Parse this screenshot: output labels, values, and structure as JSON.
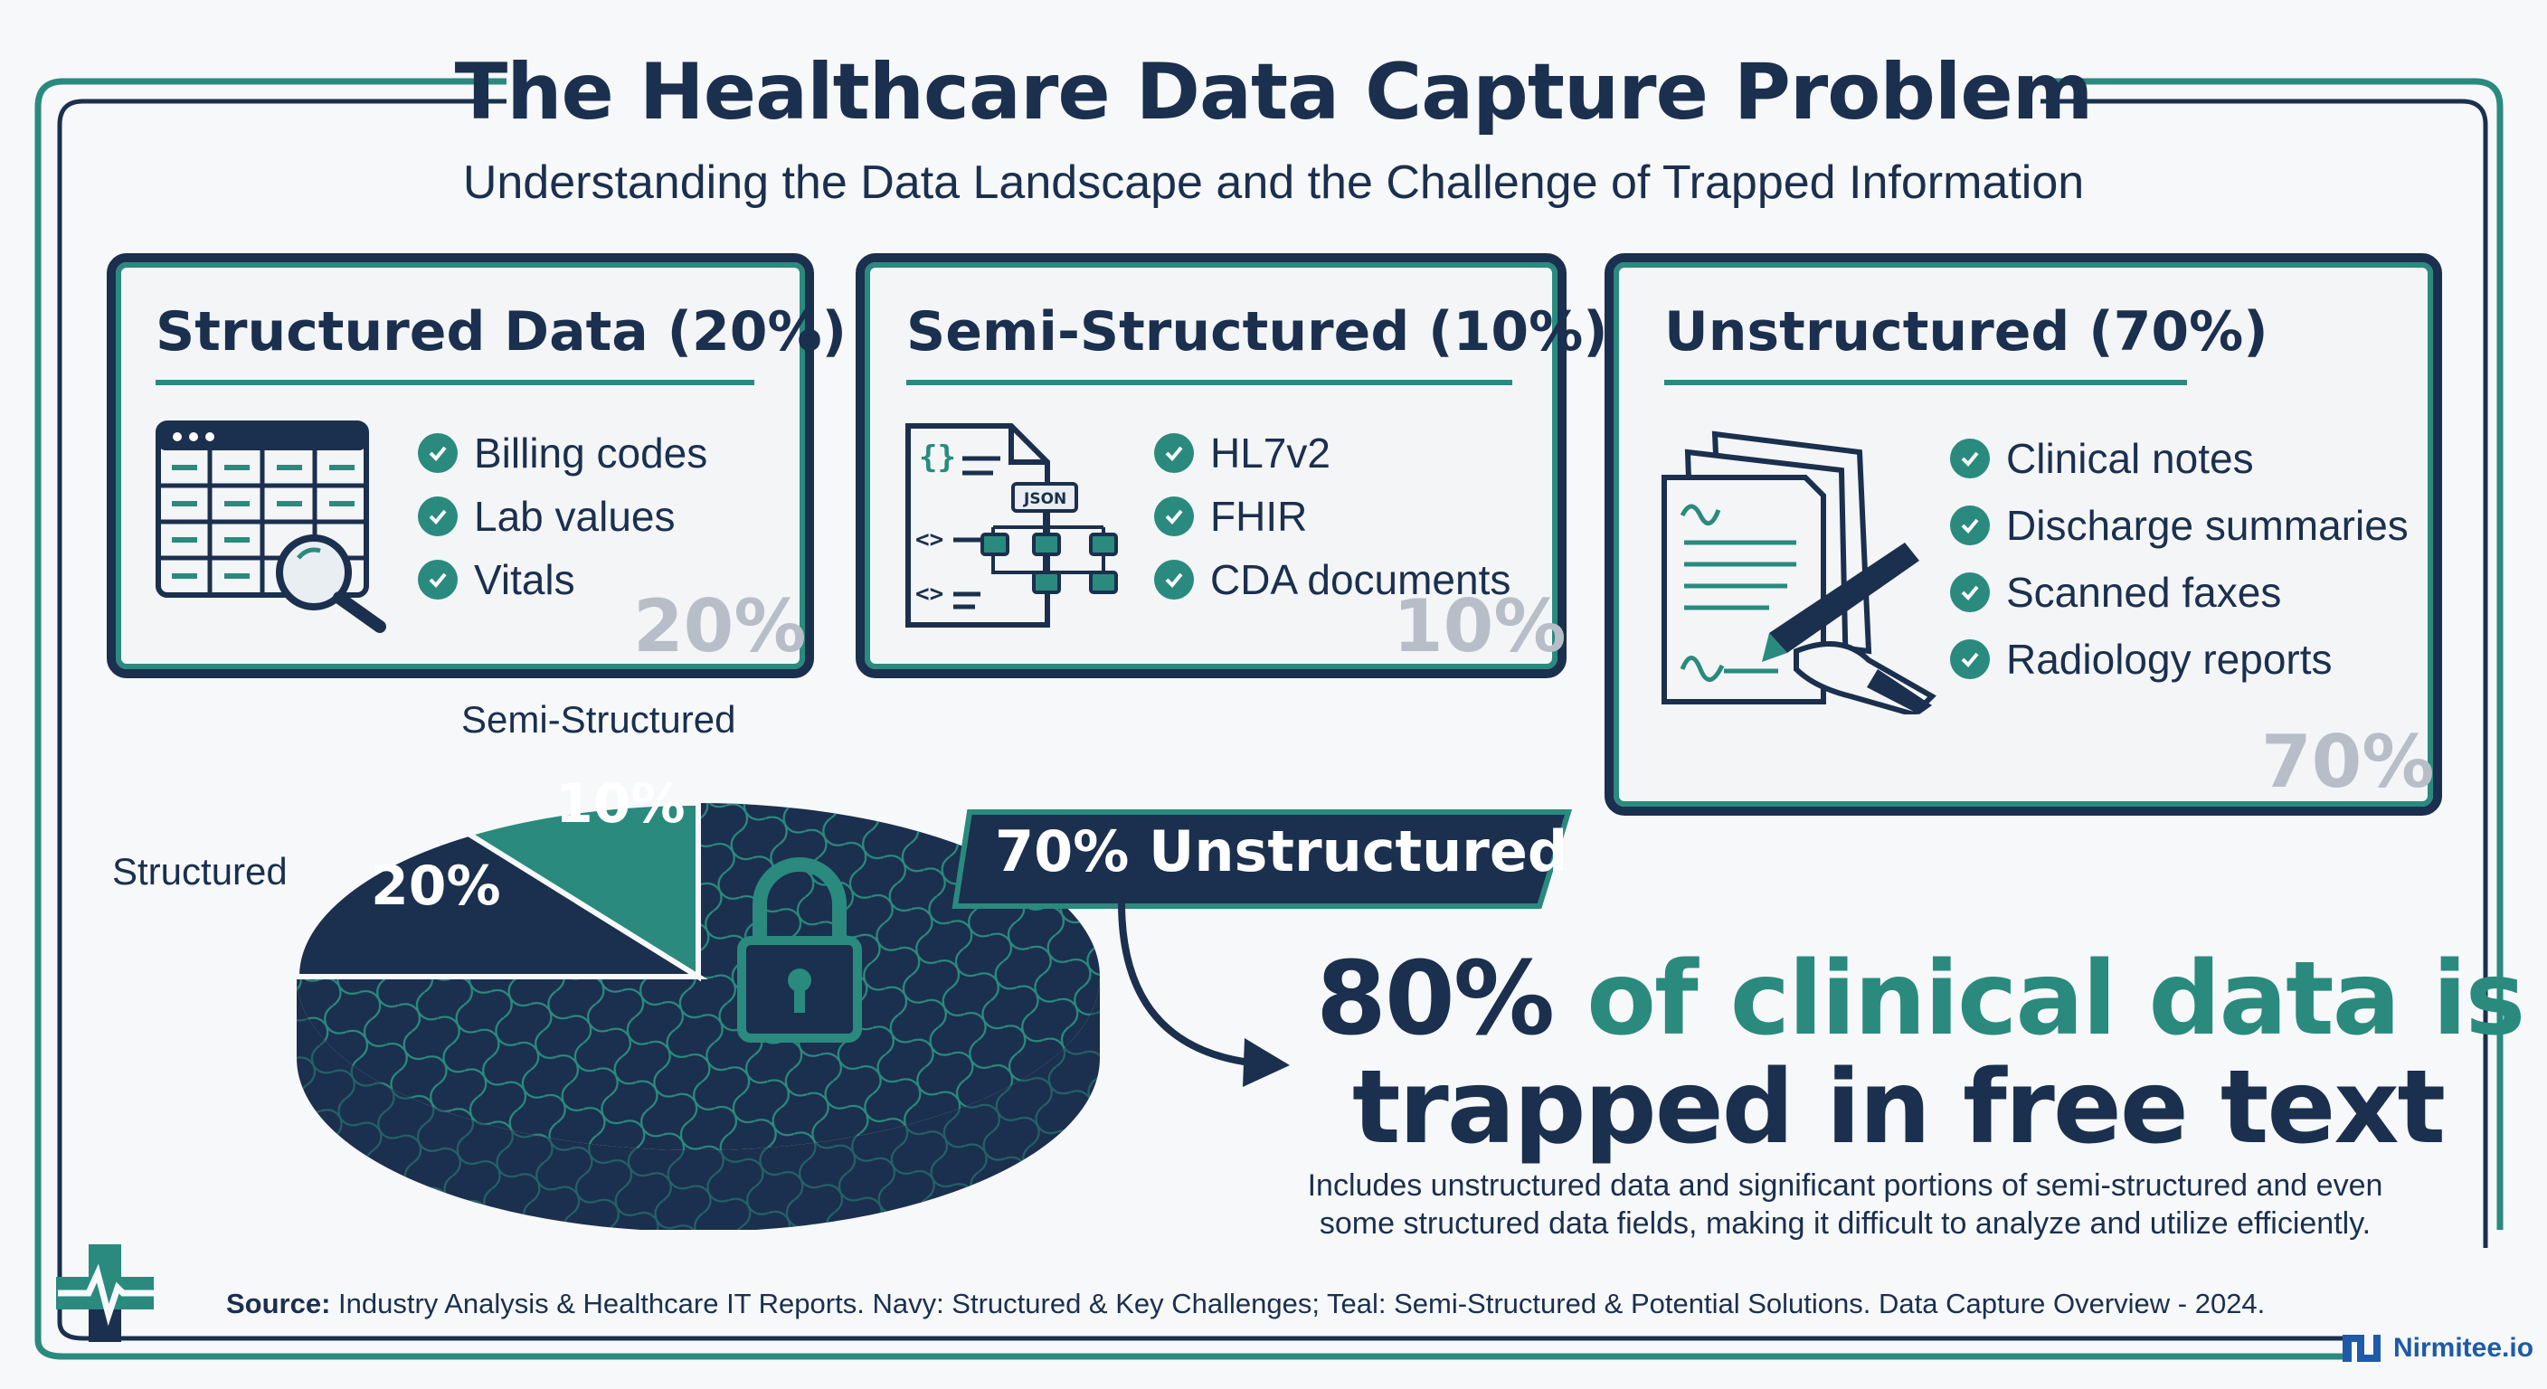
{
  "header": {
    "title": "The Healthcare Data Capture Problem",
    "subtitle": "Understanding the Data Landscape and the Challenge of Trapped Information"
  },
  "cards": [
    {
      "title": "Structured Data (20%)",
      "icon": "spreadsheet-search-icon",
      "items": [
        "Billing codes",
        "Lab values",
        "Vitals"
      ],
      "watermark": "20%"
    },
    {
      "title": "Semi-Structured (10%)",
      "icon": "json-document-icon",
      "icon_text": "JSON",
      "items": [
        "HL7v2",
        "FHIR",
        "CDA documents"
      ],
      "watermark": "10%"
    },
    {
      "title": "Unstructured (70%)",
      "icon": "handwritten-document-icon",
      "items": [
        "Clinical notes",
        "Discharge summaries",
        "Scanned faxes",
        "Radiology reports"
      ],
      "watermark": "70%"
    }
  ],
  "pie": {
    "segments": [
      {
        "label": "Structured",
        "value_label": "20%",
        "value": 20,
        "color": "#1b2f4e"
      },
      {
        "label": "Semi-Structured",
        "value_label": "10%",
        "value": 10,
        "color": "#2a8a7e"
      },
      {
        "label": "70% Unstructured",
        "value": 70,
        "color": "#1b2f4e"
      }
    ]
  },
  "callout": {
    "label": "70% Unstructured"
  },
  "headline": {
    "pct": "80%",
    "line1_rest": " of clinical data is",
    "line2": "trapped in free text",
    "description": "Includes unstructured data and significant portions of semi-structured and even some structured data fields, making it difficult to analyze and utilize efficiently."
  },
  "footer": {
    "source_label": "Source:",
    "source_text": " Industry Analysis & Healthcare IT Reports. Navy: Structured & Key Challenges; Teal: Semi-Structured & Potential Solutions. Data Capture Overview - 2024.",
    "brand": "Nirmitee.io",
    "logo_icon": "medical-cross-pulse-icon"
  },
  "colors": {
    "navy": "#1b2f4e",
    "teal": "#2a8a7e",
    "background": "#f6f8f9",
    "watermark": "#b8bec7"
  }
}
